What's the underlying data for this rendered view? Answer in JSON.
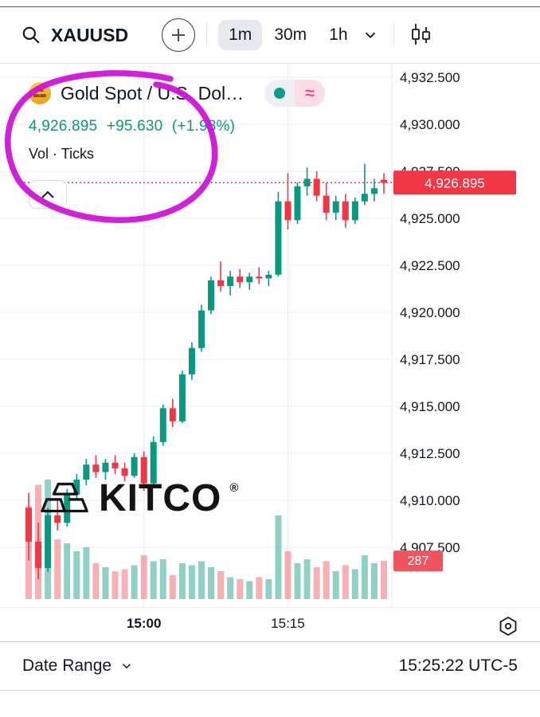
{
  "toolbar": {
    "symbol": "XAUUSD",
    "timeframes": [
      "1m",
      "30m",
      "1h"
    ],
    "selected_timeframe": "1m"
  },
  "legend": {
    "title": "Gold Spot / U.S. Dol…",
    "price": "4,926.895",
    "change": "+95.630",
    "change_pct": "(+1.98%)",
    "indicator_label": "Vol · Ticks",
    "approx_glyph": "≈"
  },
  "axis": {
    "price_badge": "4,926.895",
    "volume_badge": "287"
  },
  "watermark": {
    "text": "KITCO",
    "reg": "®"
  },
  "footer": {
    "date_range": "Date Range",
    "clock": "15:25:22 UTC-5"
  },
  "colors": {
    "up": "#089981",
    "down": "#f23645",
    "vol_up": "rgba(8,153,129,0.45)",
    "vol_down": "rgba(242,54,69,0.40)",
    "grid": "#ececf0",
    "badge_price": "#f23645",
    "badge_vol": "#f0545e",
    "accent_text": "#089981",
    "annotation": "#cf13d8"
  },
  "chart_data": {
    "type": "candlestick",
    "symbol": "XAUUSD",
    "title": "Gold Spot / U.S. Dollar",
    "interval": "1m",
    "last_price": 4926.895,
    "change": 95.63,
    "change_percent": 1.98,
    "last_volume": 287,
    "y_axis": {
      "min": 4905.5,
      "max": 4933.5,
      "tick_step": 2.5,
      "ticks": [
        {
          "value": 4932.5,
          "label": "4,932.500"
        },
        {
          "value": 4930.0,
          "label": "4,930.000"
        },
        {
          "value": 4927.5,
          "label": "4,927.500"
        },
        {
          "value": 4925.0,
          "label": "4,925.000"
        },
        {
          "value": 4922.5,
          "label": "4,922.500"
        },
        {
          "value": 4920.0,
          "label": "4,920.000"
        },
        {
          "value": 4917.5,
          "label": "4,917.500"
        },
        {
          "value": 4915.0,
          "label": "4,915.000"
        },
        {
          "value": 4912.5,
          "label": "4,912.500"
        },
        {
          "value": 4910.0,
          "label": "4,910.000"
        },
        {
          "value": 4907.5,
          "label": "4,907.500"
        }
      ]
    },
    "x_axis": {
      "ticks": [
        {
          "index": 12,
          "label": "15:00",
          "bold": true
        },
        {
          "index": 27,
          "label": "15:15",
          "bold": false
        }
      ],
      "last_candle_time": "15:25"
    },
    "candles": [
      [
        4909.6,
        4910.4,
        4906.8,
        4907.8,
        700
      ],
      [
        4907.8,
        4908.8,
        4905.8,
        4906.4,
        860
      ],
      [
        4906.4,
        4909.6,
        4906.2,
        4909.2,
        900
      ],
      [
        4909.2,
        4910.0,
        4908.4,
        4908.8,
        450
      ],
      [
        4908.8,
        4910.6,
        4908.6,
        4910.3,
        420
      ],
      [
        4910.3,
        4911.4,
        4910.0,
        4911.1,
        360
      ],
      [
        4911.1,
        4912.2,
        4910.8,
        4911.9,
        390
      ],
      [
        4911.9,
        4912.4,
        4911.2,
        4911.5,
        270
      ],
      [
        4911.5,
        4912.2,
        4911.1,
        4912.0,
        240
      ],
      [
        4912.0,
        4912.4,
        4911.4,
        4911.7,
        210
      ],
      [
        4911.7,
        4912.0,
        4911.0,
        4911.3,
        225
      ],
      [
        4911.3,
        4912.5,
        4911.2,
        4912.3,
        255
      ],
      [
        4912.3,
        4912.6,
        4910.5,
        4910.9,
        330
      ],
      [
        4910.9,
        4913.4,
        4910.8,
        4913.1,
        285
      ],
      [
        4913.1,
        4915.1,
        4912.9,
        4914.9,
        300
      ],
      [
        4914.9,
        4915.4,
        4913.9,
        4914.2,
        180
      ],
      [
        4914.2,
        4916.9,
        4914.1,
        4916.7,
        270
      ],
      [
        4916.7,
        4918.4,
        4916.4,
        4918.1,
        255
      ],
      [
        4918.1,
        4920.4,
        4917.9,
        4920.1,
        285
      ],
      [
        4920.1,
        4921.9,
        4919.9,
        4921.7,
        240
      ],
      [
        4921.7,
        4922.7,
        4921.1,
        4921.4,
        210
      ],
      [
        4921.4,
        4922.2,
        4920.9,
        4921.9,
        165
      ],
      [
        4921.9,
        4922.3,
        4921.3,
        4921.6,
        150
      ],
      [
        4921.6,
        4922.1,
        4921.2,
        4921.9,
        135
      ],
      [
        4921.9,
        4922.4,
        4921.5,
        4921.8,
        165
      ],
      [
        4921.8,
        4922.2,
        4921.4,
        4922.0,
        150
      ],
      [
        4922.0,
        4926.4,
        4921.9,
        4925.9,
        630
      ],
      [
        4925.9,
        4927.4,
        4924.4,
        4924.9,
        360
      ],
      [
        4924.9,
        4926.9,
        4924.7,
        4926.7,
        270
      ],
      [
        4926.7,
        4927.7,
        4926.2,
        4927.1,
        300
      ],
      [
        4927.1,
        4927.5,
        4925.9,
        4926.2,
        240
      ],
      [
        4926.2,
        4926.9,
        4924.9,
        4925.3,
        285
      ],
      [
        4925.3,
        4926.2,
        4924.9,
        4925.9,
        210
      ],
      [
        4925.9,
        4926.3,
        4924.5,
        4924.9,
        255
      ],
      [
        4924.9,
        4926.1,
        4924.7,
        4925.9,
        225
      ],
      [
        4925.9,
        4927.9,
        4925.7,
        4926.3,
        330
      ],
      [
        4926.3,
        4927.1,
        4925.9,
        4926.6,
        270
      ],
      [
        4927.05,
        4927.4,
        4926.3,
        4926.895,
        287
      ]
    ]
  }
}
